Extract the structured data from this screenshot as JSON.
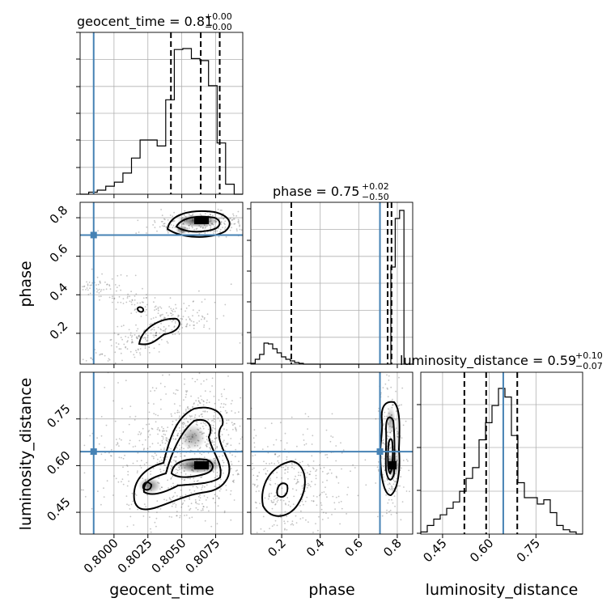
{
  "chart_data": {
    "type": "corner",
    "parameters": [
      "geocent_time",
      "phase",
      "luminosity_distance"
    ],
    "injection": {
      "geocent_time": 0.7985,
      "phase": 0.71,
      "luminosity_distance": 0.645
    },
    "colors": {
      "injection": "#4682b4",
      "hist": "#000000",
      "scatter": "#555555",
      "grid": "#b0b0b0"
    },
    "grid": true,
    "ranges": {
      "geocent_time": [
        0.7975,
        0.8095
      ],
      "phase": [
        0.04,
        0.88
      ],
      "luminosity_distance": [
        0.38,
        0.9
      ]
    },
    "tick_labels": {
      "geocent_time": [
        "0.8000",
        "0.8025",
        "0.8050",
        "0.8075"
      ],
      "phase_y": [
        "0.2",
        "0.4",
        "0.6",
        "0.8"
      ],
      "phase_x": [
        "0.2",
        "0.4",
        "0.6",
        "0.8"
      ],
      "luminosity_distance_y": [
        "0.45",
        "0.60",
        "0.75"
      ],
      "luminosity_distance_x": [
        "0.45",
        "0.60",
        "0.75"
      ]
    },
    "axis_labels": {
      "x": [
        "geocent_time",
        "phase",
        "luminosity_distance"
      ],
      "y": [
        "phase",
        "luminosity_distance"
      ]
    },
    "titles": [
      {
        "main": "geocent_time = 0.81",
        "plus": "+0.00",
        "minus": "−0.00"
      },
      {
        "main": "phase = 0.75",
        "plus": "+0.02",
        "minus": "−0.50"
      },
      {
        "main": "luminosity_distance = 0.59",
        "plus": "+0.10",
        "minus": "−0.07"
      }
    ],
    "histograms": {
      "geocent_time": {
        "edges": [
          0.7975,
          0.8095
        ],
        "counts": [
          0,
          2,
          4,
          8,
          12,
          21,
          36,
          54,
          54,
          48,
          94,
          144,
          145,
          135,
          133,
          108,
          51,
          10,
          0
        ],
        "quantiles": [
          0.8042,
          0.8064,
          0.8078
        ]
      },
      "phase": {
        "edges": [
          0.04,
          0.88
        ],
        "counts": [
          1,
          6,
          12,
          26,
          25,
          19,
          14,
          9,
          6,
          4,
          2,
          1,
          0,
          0,
          0,
          0,
          0,
          0,
          0,
          0,
          0,
          0,
          0,
          0,
          0,
          0,
          0,
          0,
          0,
          0,
          0,
          0,
          120,
          180,
          190,
          0,
          0
        ],
        "quantiles": [
          0.25,
          0.75,
          0.77
        ]
      },
      "luminosity_distance": {
        "edges": [
          0.38,
          0.9
        ],
        "counts": [
          1,
          4,
          7,
          9,
          12,
          15,
          20,
          26,
          31,
          44,
          52,
          60,
          68,
          64,
          46,
          24,
          17,
          17,
          14,
          16,
          10,
          4,
          2,
          1,
          0
        ],
        "quantiles": [
          0.52,
          0.59,
          0.69
        ]
      }
    }
  }
}
